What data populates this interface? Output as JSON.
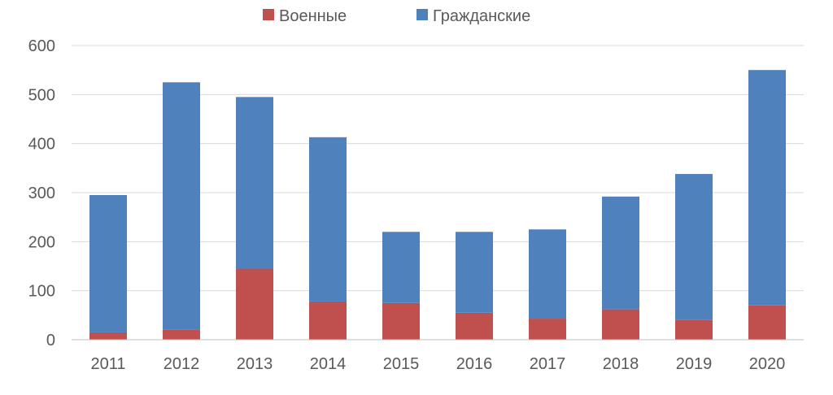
{
  "chart_data": {
    "type": "bar",
    "stacked": true,
    "categories": [
      "2011",
      "2012",
      "2013",
      "2014",
      "2015",
      "2016",
      "2017",
      "2018",
      "2019",
      "2020"
    ],
    "series": [
      {
        "name": "Военные",
        "color": "#c0504d",
        "values": [
          15,
          20,
          145,
          78,
          75,
          55,
          43,
          62,
          40,
          70
        ]
      },
      {
        "name": "Гражданские",
        "color": "#4f81bd",
        "values": [
          280,
          505,
          350,
          335,
          145,
          165,
          182,
          230,
          298,
          480
        ]
      }
    ],
    "yticks": [
      "0",
      "100",
      "200",
      "300",
      "400",
      "500",
      "600"
    ],
    "ylim": [
      0,
      600
    ],
    "grid": true,
    "legend_position": "top-center"
  }
}
